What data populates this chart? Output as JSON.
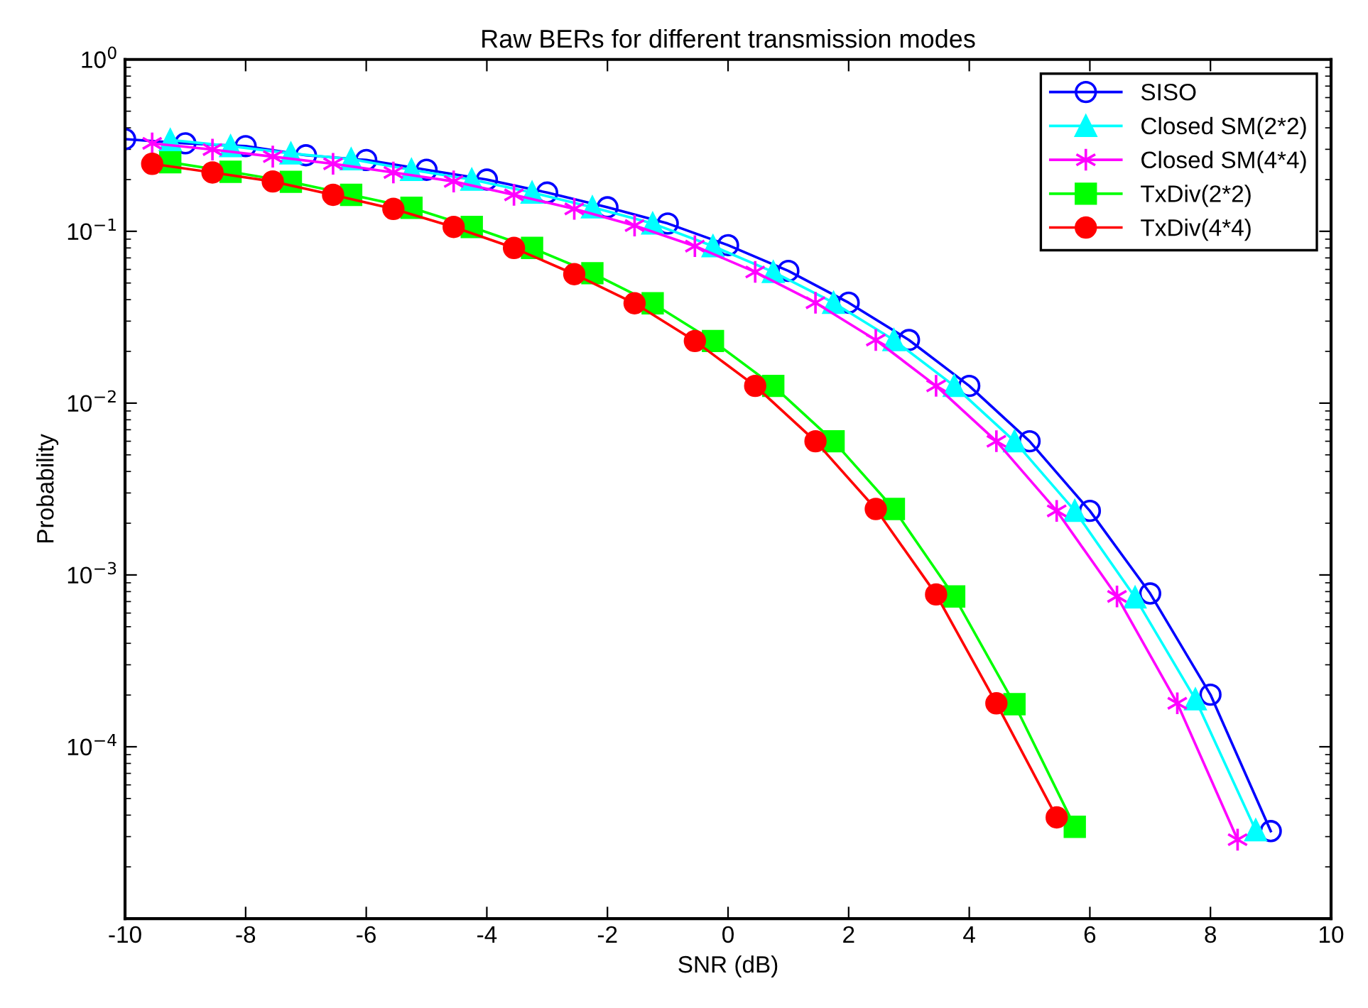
{
  "chart_data": {
    "type": "line",
    "title": "Raw BERs for different transmission modes",
    "xlabel": "SNR (dB)",
    "ylabel": "Probability",
    "log": "y",
    "xlim": [
      -10,
      10
    ],
    "xticks": [
      -10,
      -8,
      -6,
      -4,
      -2,
      0,
      2,
      4,
      6,
      8,
      10
    ],
    "ylim": [
      1e-05,
      1
    ],
    "yticks": [
      {
        "value": 1,
        "label": "10$^{0}$"
      },
      {
        "value": 0.1,
        "label": "10$^{−1}$"
      },
      {
        "value": 0.01,
        "label": "10$^{−2}$"
      },
      {
        "value": 0.001,
        "label": "10$^{−3}$"
      },
      {
        "value": 0.0001,
        "label": "10$^{−4}$"
      }
    ],
    "grid": false,
    "legend": "top right",
    "line_style": "solid",
    "series": [
      {
        "name": "SISO",
        "color": "#0000ff",
        "marker": "circle",
        "x": [
          -10,
          -9,
          -8,
          -7,
          -6,
          -5,
          -4,
          -3,
          -2,
          -1,
          0,
          1,
          2,
          3,
          4,
          5,
          6,
          7,
          8,
          9
        ],
        "values": [
          0.344,
          0.325,
          0.313,
          0.277,
          0.26,
          0.228,
          0.2,
          0.168,
          0.138,
          0.111,
          0.083,
          0.0588,
          0.0384,
          0.0233,
          0.0126,
          0.006,
          0.00236,
          0.00078,
          0.000201,
          3.23e-05
        ]
      },
      {
        "name": "Closed SM(2*2)",
        "color": "#00ffff",
        "marker": "triangle",
        "x": [
          -9.25,
          -8.25,
          -7.25,
          -6.25,
          -5.25,
          -4.25,
          -3.25,
          -2.25,
          -1.25,
          -0.25,
          0.75,
          1.75,
          2.75,
          3.75,
          4.75,
          5.75,
          6.75,
          7.75,
          8.75
        ],
        "values": [
          0.34,
          0.313,
          0.284,
          0.263,
          0.228,
          0.2,
          0.168,
          0.138,
          0.111,
          0.082,
          0.058,
          0.0384,
          0.0233,
          0.0126,
          0.006,
          0.00236,
          0.00074,
          0.000189,
          3.27e-05
        ]
      },
      {
        "name": "Closed SM(4*4)",
        "color": "#ff00ff",
        "marker": "cross",
        "x": [
          -9.55,
          -8.55,
          -7.55,
          -6.55,
          -5.55,
          -4.55,
          -3.55,
          -2.55,
          -1.55,
          -0.55,
          0.45,
          1.45,
          2.45,
          3.45,
          4.45,
          5.45,
          6.45,
          7.45,
          8.45
        ],
        "values": [
          0.325,
          0.299,
          0.272,
          0.247,
          0.22,
          0.195,
          0.163,
          0.135,
          0.108,
          0.082,
          0.058,
          0.0384,
          0.0233,
          0.0126,
          0.006,
          0.00236,
          0.00075,
          0.000179,
          2.88e-05
        ]
      },
      {
        "name": "TxDiv(2*2)",
        "color": "#00ff00",
        "marker": "square",
        "x": [
          -9.25,
          -8.25,
          -7.25,
          -6.25,
          -5.25,
          -4.25,
          -3.25,
          -2.25,
          -1.25,
          -0.25,
          0.75,
          1.75,
          2.75,
          3.75,
          4.75,
          5.75
        ],
        "values": [
          0.252,
          0.222,
          0.194,
          0.163,
          0.137,
          0.106,
          0.08,
          0.057,
          0.0381,
          0.023,
          0.0126,
          0.006,
          0.00242,
          0.00075,
          0.000177,
          3.42e-05
        ]
      },
      {
        "name": "TxDiv(4*4)",
        "color": "#ff0000",
        "marker": "circle_filled",
        "x": [
          -9.55,
          -8.55,
          -7.55,
          -6.55,
          -5.55,
          -4.55,
          -3.55,
          -2.55,
          -1.55,
          -0.55,
          0.45,
          1.45,
          2.45,
          3.45,
          4.45,
          5.45
        ],
        "values": [
          0.247,
          0.22,
          0.195,
          0.163,
          0.135,
          0.106,
          0.08,
          0.0563,
          0.0381,
          0.023,
          0.0126,
          0.006,
          0.00242,
          0.00077,
          0.000179,
          3.88e-05
        ]
      }
    ]
  }
}
